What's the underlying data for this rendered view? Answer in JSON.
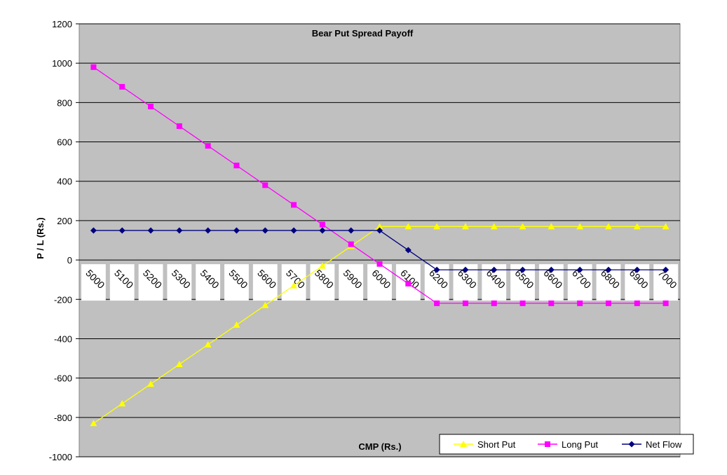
{
  "chart_data": {
    "type": "line",
    "title": "Bear Put Spread Payoff",
    "xlabel": "CMP (Rs.)",
    "ylabel": "P / L (Rs.)",
    "ylim": [
      -1000,
      1200
    ],
    "yticks": [
      1200,
      1000,
      800,
      600,
      400,
      200,
      0,
      -200,
      -400,
      -600,
      -800,
      -1000
    ],
    "categories": [
      "5000",
      "5100",
      "5200",
      "5300",
      "5400",
      "5500",
      "5600",
      "5700",
      "5800",
      "5900",
      "6000",
      "6100",
      "6200",
      "6300",
      "6400",
      "6500",
      "6600",
      "6700",
      "6800",
      "6900",
      "7000"
    ],
    "grid": true,
    "legend_position": "bottom-right",
    "series": [
      {
        "name": "Short Put",
        "color": "#FFFF00",
        "marker": "triangle",
        "values": [
          -830,
          -730,
          -630,
          -530,
          -430,
          -330,
          -230,
          -130,
          -30,
          70,
          170,
          170,
          170,
          170,
          170,
          170,
          170,
          170,
          170,
          170,
          170
        ]
      },
      {
        "name": "Long Put",
        "color": "#FF00FF",
        "marker": "square",
        "values": [
          980,
          880,
          780,
          680,
          580,
          480,
          380,
          280,
          180,
          80,
          -20,
          -120,
          -220,
          -220,
          -220,
          -220,
          -220,
          -220,
          -220,
          -220,
          -220
        ]
      },
      {
        "name": "Net Flow",
        "color": "#000080",
        "marker": "diamond",
        "values": [
          150,
          150,
          150,
          150,
          150,
          150,
          150,
          150,
          150,
          150,
          150,
          50,
          -50,
          -50,
          -50,
          -50,
          -50,
          -50,
          -50,
          -50,
          -50
        ]
      }
    ]
  }
}
